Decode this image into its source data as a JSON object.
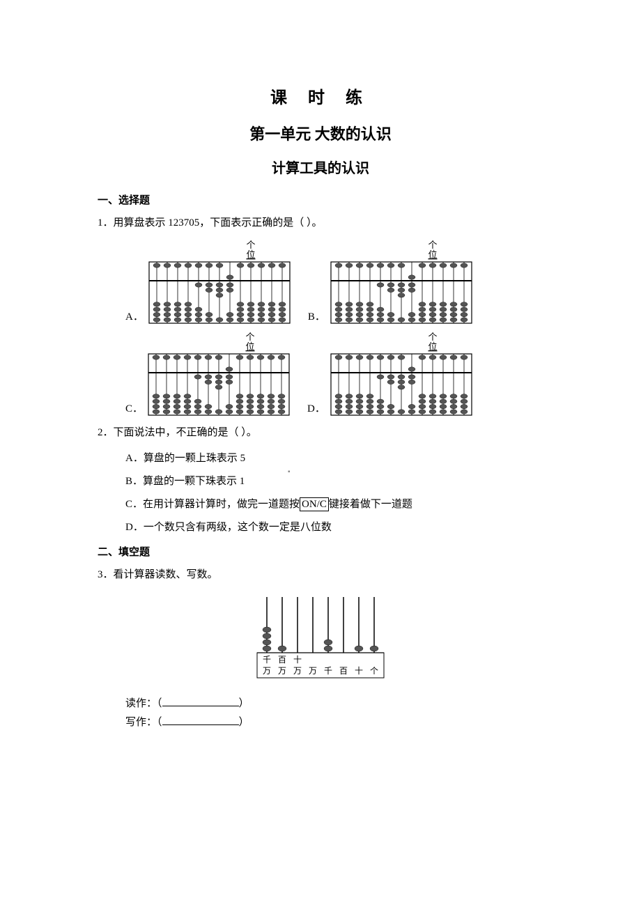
{
  "title": "课 时 练",
  "subtitle": "第一单元  大数的认识",
  "subtitle2": "计算工具的认识",
  "section1": "一、选择题",
  "q1": {
    "text": "1．用算盘表示 123705，下面表示正确的是（  ）。",
    "optA": "A．",
    "optB": "B．",
    "optC": "C．",
    "optD": "D．",
    "marker_top": "个",
    "marker_bot": "位",
    "abacus": {
      "rods_large": 13,
      "marker_rod_large": 9,
      "bead_color": "#555555",
      "frame_color": "#000000",
      "A": {
        "upper": [
          1,
          1,
          1,
          1,
          1,
          1,
          1,
          1,
          1,
          1,
          1,
          1,
          1
        ],
        "active_upper": [
          0,
          0,
          0,
          0,
          0,
          0,
          0,
          1,
          0,
          0,
          0,
          0,
          0
        ],
        "lower": [
          4,
          4,
          4,
          4,
          4,
          4,
          4,
          4,
          4,
          4,
          4,
          4,
          4
        ],
        "active_lower": [
          0,
          0,
          0,
          0,
          1,
          2,
          3,
          2,
          0,
          0,
          0,
          0,
          0
        ]
      },
      "B": {
        "upper": [
          1,
          1,
          1,
          1,
          1,
          1,
          1,
          1,
          1,
          1,
          1,
          1,
          1
        ],
        "active_upper": [
          0,
          0,
          0,
          0,
          0,
          0,
          0,
          1,
          0,
          0,
          0,
          0,
          0
        ],
        "lower": [
          4,
          4,
          4,
          4,
          4,
          4,
          4,
          4,
          4,
          4,
          4,
          4,
          4
        ],
        "active_lower": [
          0,
          0,
          0,
          0,
          1,
          2,
          3,
          2,
          0,
          0,
          0,
          0,
          0
        ]
      },
      "C": {
        "upper": [
          1,
          1,
          1,
          1,
          1,
          1,
          1,
          1,
          1,
          1,
          1,
          1,
          1
        ],
        "active_upper": [
          0,
          0,
          0,
          0,
          0,
          0,
          0,
          1,
          0,
          0,
          0,
          0,
          0
        ],
        "lower": [
          4,
          4,
          4,
          4,
          4,
          4,
          4,
          4,
          4,
          4,
          4,
          4,
          4
        ],
        "active_lower": [
          0,
          0,
          0,
          0,
          1,
          2,
          3,
          2,
          0,
          0,
          0,
          0,
          0
        ]
      },
      "D": {
        "upper": [
          1,
          1,
          1,
          1,
          1,
          1,
          1,
          1,
          1,
          1,
          1,
          1,
          1
        ],
        "active_upper": [
          0,
          0,
          0,
          0,
          0,
          0,
          0,
          1,
          0,
          0,
          0,
          0,
          0
        ],
        "lower": [
          4,
          4,
          4,
          4,
          4,
          4,
          4,
          4,
          4,
          4,
          4,
          4,
          4
        ],
        "active_lower": [
          0,
          0,
          0,
          0,
          1,
          2,
          3,
          2,
          0,
          0,
          0,
          0,
          0
        ]
      }
    }
  },
  "q2": {
    "text": "2．下面说法中，不正确的是（  ）。",
    "A": "A．算盘的一颗上珠表示 5",
    "B": "B．算盘的一颗下珠表示 1",
    "C_pre": "C．在用计算器计算时，做完一道题按",
    "C_box": "ON/C",
    "C_post": "键接着做下一道题",
    "D": "D．一个数只含有两级，这个数一定是八位数"
  },
  "section2": "二、填空题",
  "q3": {
    "text": "3．看计算器读数、写数。",
    "labels_top": [
      "千",
      "百",
      "十",
      " ",
      " ",
      " ",
      " ",
      " "
    ],
    "labels_bot": [
      "万",
      "万",
      "万",
      "万",
      "千",
      "百",
      "十",
      "个"
    ],
    "rods": 8,
    "beads": [
      4,
      1,
      0,
      0,
      2,
      0,
      1,
      1
    ],
    "read_label": "读作：（",
    "write_label": "写作：（",
    "paren_close": "）"
  },
  "colors": {
    "text": "#000000",
    "bg": "#ffffff",
    "bead": "#555555",
    "frame": "#000000"
  }
}
